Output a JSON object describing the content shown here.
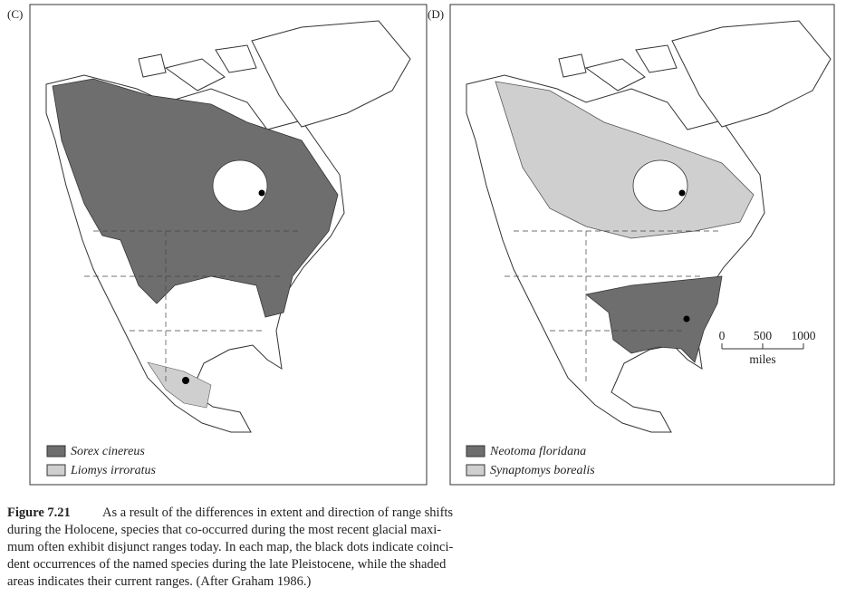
{
  "panels": [
    {
      "label": "(C)",
      "legend": [
        "Sorex cinereus",
        "Liomys irroratus"
      ]
    },
    {
      "label": "(D)",
      "legend": [
        "Neotoma floridana",
        "Synaptomys borealis"
      ]
    }
  ],
  "scale": {
    "ticks": [
      "0",
      "500",
      "1000"
    ],
    "unit": "miles"
  },
  "caption": {
    "title": "Figure 7.21",
    "lines": [
      "As a result of the differences in extent and direction of range shifts",
      "during the Holocene, species that co-occurred during the most recent glacial maxi-",
      "mum often exhibit disjunct ranges today. In each map, the black dots indicate coinci-",
      "dent occurrences of the named species during the late Pleistocene, while the shaded",
      "areas indicates their current ranges. (After Graham 1986.)"
    ]
  }
}
